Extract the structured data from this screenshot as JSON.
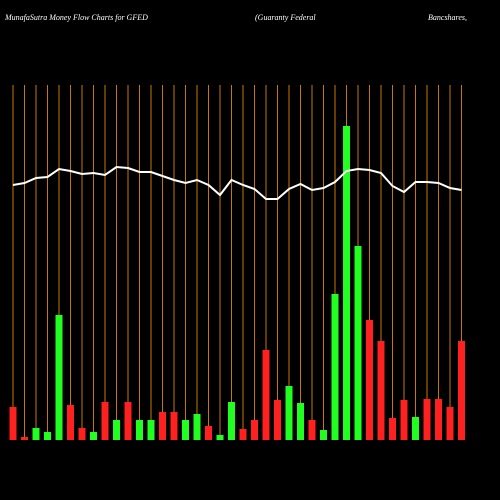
{
  "chart_data": {
    "type": "bar_line",
    "title": [
      "MunafaSutra  Money Flow  Charts for GFED",
      "(Guaranty Federal",
      "Bancshares,"
    ],
    "categories": [
      null,
      null,
      null,
      null,
      null,
      null,
      null,
      null,
      null,
      null,
      null,
      null,
      null,
      null,
      null,
      null,
      null,
      null,
      null,
      null,
      null,
      null,
      null,
      null,
      null,
      null,
      null,
      null,
      null,
      null,
      null,
      null,
      null,
      null,
      null,
      null,
      null,
      null,
      null,
      null
    ],
    "bars": {
      "values": [
        33,
        3,
        12,
        8,
        125,
        35,
        12,
        8,
        38,
        20,
        38,
        20,
        20,
        28,
        28,
        20,
        26,
        14,
        5,
        38,
        11,
        20,
        90,
        40,
        54,
        37,
        20,
        10,
        146,
        314,
        194,
        120,
        99,
        22,
        40,
        23,
        41,
        41,
        33,
        99
      ],
      "colors": [
        "#ff2020",
        "#ff2020",
        "#20ff20",
        "#20ff20",
        "#20ff20",
        "#ff2020",
        "#ff2020",
        "#20ff20",
        "#ff2020",
        "#20ff20",
        "#ff2020",
        "#20ff20",
        "#20ff20",
        "#ff2020",
        "#ff2020",
        "#20ff20",
        "#20ff20",
        "#ff2020",
        "#20ff20",
        "#20ff20",
        "#ff2020",
        "#ff2020",
        "#ff2020",
        "#ff2020",
        "#20ff20",
        "#20ff20",
        "#ff2020",
        "#20ff20",
        "#20ff20",
        "#20ff20",
        "#20ff20",
        "#ff2020",
        "#ff2020",
        "#ff2020",
        "#ff2020",
        "#20ff20",
        "#ff2020",
        "#ff2020",
        "#ff2020",
        "#ff2020"
      ]
    },
    "line": {
      "color": "#ffffff",
      "values": [
        255,
        257,
        262,
        263,
        271,
        269,
        266,
        267,
        265,
        273,
        272,
        268,
        268,
        264,
        260,
        257,
        260,
        255,
        245,
        260,
        255,
        251,
        241,
        241,
        251,
        256,
        250,
        252,
        258,
        269,
        271,
        270,
        267,
        254,
        248,
        258,
        258,
        257,
        252,
        250
      ]
    },
    "ylim": [
      0,
      355
    ],
    "gridcolor": "#c87800"
  }
}
